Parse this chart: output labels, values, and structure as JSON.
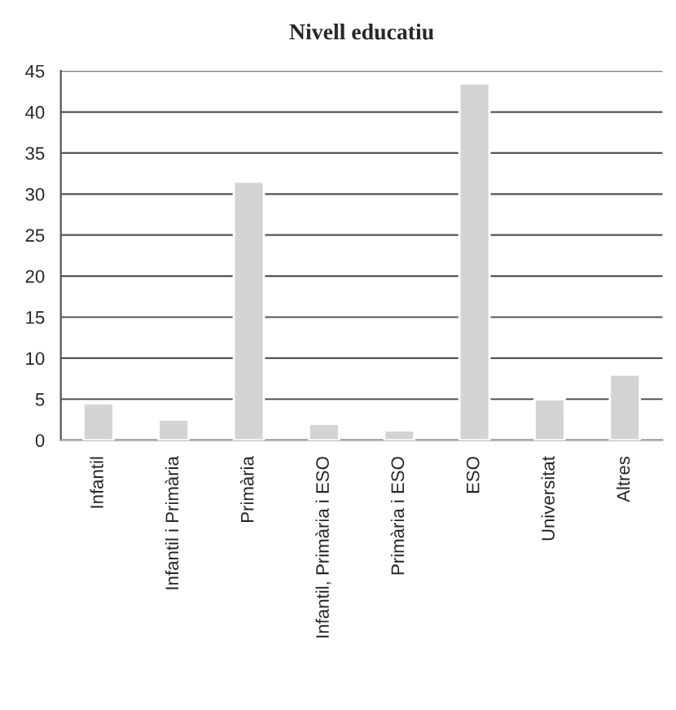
{
  "chart_data": {
    "type": "bar",
    "title": "Nivell educatiu",
    "categories": [
      "Infantil",
      "Infantil i Primària",
      "Primària",
      "Infantil, Primària i ESO",
      "Primària i ESO",
      "ESO",
      "Universitat",
      "Altres"
    ],
    "values": [
      4.5,
      2.5,
      31.5,
      2,
      1.2,
      43.5,
      5,
      8
    ],
    "color": "#d4d4d4",
    "ylim": [
      0,
      45
    ],
    "yticks": [
      0,
      5,
      10,
      15,
      20,
      25,
      30,
      35,
      40,
      45
    ],
    "grid": "y"
  }
}
